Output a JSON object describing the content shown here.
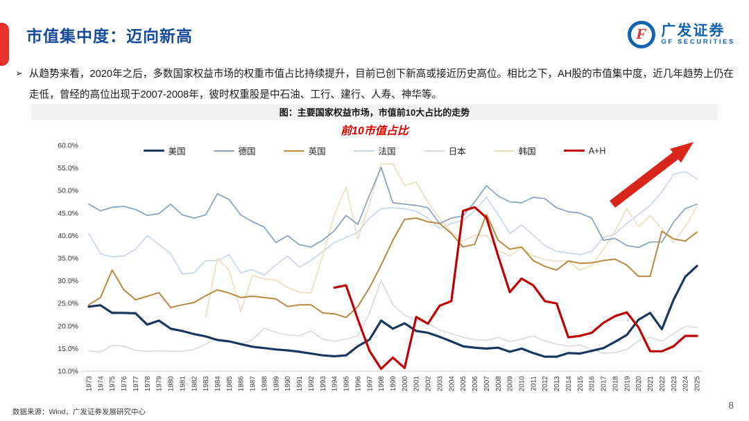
{
  "slide": {
    "title": "市值集中度：迈向新高",
    "bullet_glyph": "➢",
    "bullet": "从趋势来看，2020年之后，多数国家权益市场的权重市值占比持续提升，目前已创下新高或接近历史高位。相比之下，AH股的市值集中度，近几年趋势上仍在走低，曾经的高位出现于2007-2008年，彼时权重股是中石油、工行、建行、人寿、神华等。",
    "source_note": "数据来源：Wind，广发证券发展研究中心",
    "page_number": "8"
  },
  "logo": {
    "cn": "广发证券",
    "en": "GF SECURITIES",
    "glyph": "F",
    "brand_blue": "#1264AE",
    "brand_red": "#E5342B"
  },
  "chart_data": {
    "type": "line",
    "title": "图：主要国家权益市场，市值前10大占比的走势",
    "subtitle": "前10市值占比",
    "xlabel": "",
    "ylabel": "",
    "grid": false,
    "legend_position": "top",
    "ylim": [
      10,
      60
    ],
    "ytick_labels": [
      "60.0%",
      "55.0%",
      "50.0%",
      "45.0%",
      "40.0%",
      "35.0%",
      "30.0%",
      "25.0%",
      "20.0%",
      "15.0%",
      "10.0%"
    ],
    "x": [
      1973,
      1974,
      1975,
      1976,
      1977,
      1978,
      1979,
      1980,
      1981,
      1982,
      1983,
      1984,
      1985,
      1986,
      1987,
      1988,
      1989,
      1990,
      1991,
      1992,
      1993,
      1994,
      1995,
      1996,
      1997,
      1998,
      1999,
      2000,
      2001,
      2002,
      2003,
      2004,
      2005,
      2006,
      2007,
      2008,
      2009,
      2010,
      2011,
      2012,
      2013,
      2014,
      2015,
      2016,
      2017,
      2018,
      2019,
      2020,
      2021,
      2022,
      2023,
      2024,
      2025
    ],
    "series": [
      {
        "name": "美国",
        "key": "us",
        "color": "#17375E",
        "width": 3.2,
        "values": [
          24.3,
          24.6,
          22.9,
          22.9,
          22.8,
          20.3,
          21.2,
          19.4,
          18.9,
          18.2,
          17.7,
          16.9,
          16.6,
          16.0,
          15.4,
          15.1,
          14.8,
          14.6,
          14.3,
          13.9,
          13.5,
          13.3,
          13.5,
          15.5,
          17.0,
          21.2,
          19.4,
          20.6,
          18.9,
          18.5,
          17.6,
          16.6,
          15.5,
          15.2,
          15.0,
          15.2,
          14.3,
          15.0,
          14.0,
          13.2,
          13.2,
          14.0,
          13.9,
          14.5,
          15.1,
          16.5,
          18.0,
          21.4,
          22.9,
          19.3,
          25.8,
          30.9,
          33.3
        ]
      },
      {
        "name": "德国",
        "key": "de",
        "color": "#8CA5C0",
        "width": 1.8,
        "values": [
          47.0,
          45.5,
          46.3,
          46.5,
          45.8,
          44.5,
          44.9,
          47.0,
          44.6,
          43.9,
          44.6,
          49.3,
          48.0,
          44.6,
          43.1,
          41.9,
          38.5,
          40.0,
          38.0,
          37.5,
          39.0,
          41.1,
          44.5,
          42.5,
          49.0,
          55.1,
          47.3,
          47.0,
          46.7,
          46.2,
          42.7,
          43.9,
          44.4,
          47.5,
          51.1,
          48.8,
          47.5,
          47.3,
          48.5,
          48.2,
          46.2,
          45.3,
          45.0,
          43.9,
          39.0,
          39.4,
          37.8,
          37.4,
          38.6,
          38.6,
          43.0,
          46.0,
          47.0
        ]
      },
      {
        "name": "英国",
        "key": "uk",
        "color": "#B8893E",
        "width": 2.0,
        "values": [
          24.7,
          26.3,
          32.4,
          28.0,
          25.8,
          26.6,
          27.4,
          24.1,
          24.7,
          25.2,
          26.7,
          28.0,
          27.3,
          26.3,
          26.6,
          26.3,
          26.0,
          24.3,
          24.7,
          24.7,
          22.9,
          22.7,
          21.9,
          24.3,
          28.5,
          33.5,
          39.0,
          43.6,
          43.9,
          43.1,
          42.7,
          40.5,
          37.5,
          38.1,
          44.7,
          39.0,
          37.0,
          37.5,
          34.5,
          33.2,
          32.4,
          34.4,
          33.9,
          34.0,
          34.5,
          34.8,
          33.5,
          31.0,
          31.0,
          41.0,
          39.3,
          38.8,
          40.8
        ]
      },
      {
        "name": "法国",
        "key": "fr",
        "color": "#C6D5EA",
        "width": 1.6,
        "values": [
          40.5,
          36.0,
          35.3,
          35.5,
          37.0,
          40.0,
          38.0,
          36.0,
          31.5,
          31.8,
          34.5,
          34.5,
          35.8,
          31.8,
          32.5,
          31.3,
          33.5,
          35.5,
          33.0,
          34.5,
          36.5,
          38.5,
          39.6,
          40.8,
          43.9,
          46.0,
          46.2,
          46.0,
          45.4,
          43.9,
          41.6,
          42.7,
          43.4,
          45.5,
          48.5,
          44.7,
          40.5,
          42.4,
          40.1,
          37.8,
          36.5,
          36.2,
          35.8,
          36.5,
          39.6,
          40.4,
          42.7,
          44.7,
          46.7,
          49.7,
          53.6,
          54.2,
          52.6
        ]
      },
      {
        "name": "日本",
        "key": "jp",
        "color": "#D9D9D9",
        "width": 1.6,
        "values": [
          14.5,
          14.2,
          15.7,
          15.5,
          14.6,
          14.4,
          14.5,
          14.4,
          14.4,
          14.8,
          16.0,
          17.1,
          16.5,
          16.0,
          17.0,
          19.5,
          18.6,
          18.0,
          17.8,
          18.9,
          17.1,
          16.6,
          17.1,
          17.8,
          22.9,
          30.1,
          24.7,
          22.4,
          21.2,
          20.6,
          19.1,
          18.3,
          17.5,
          17.0,
          16.8,
          17.5,
          16.5,
          17.1,
          17.8,
          16.7,
          16.0,
          15.5,
          15.8,
          14.8,
          14.0,
          14.1,
          14.8,
          16.7,
          17.5,
          16.6,
          18.3,
          19.9,
          19.7
        ]
      },
      {
        "name": "韩国",
        "key": "kr",
        "color": "#EADDBE",
        "width": 1.6,
        "values": [
          null,
          null,
          null,
          null,
          null,
          null,
          null,
          null,
          null,
          null,
          22.0,
          35.0,
          32.4,
          23.2,
          31.2,
          30.4,
          30.2,
          28.5,
          27.5,
          27.3,
          35.5,
          44.7,
          50.8,
          39.3,
          47.0,
          55.9,
          55.9,
          51.1,
          51.9,
          47.4,
          43.9,
          40.8,
          38.8,
          40.1,
          40.0,
          36.7,
          35.5,
          37.3,
          35.5,
          34.7,
          34.4,
          34.4,
          32.4,
          33.4,
          37.0,
          41.0,
          46.0,
          42.0,
          44.5,
          41.5,
          38.5,
          42.0,
          46.5
        ]
      },
      {
        "name": "A+H",
        "key": "ah",
        "color": "#C00000",
        "width": 3.2,
        "values": [
          null,
          null,
          null,
          null,
          null,
          null,
          null,
          null,
          null,
          null,
          null,
          null,
          null,
          null,
          null,
          null,
          null,
          null,
          null,
          null,
          null,
          28.5,
          29.0,
          21.5,
          14.5,
          10.5,
          13.0,
          10.7,
          22.0,
          20.5,
          24.5,
          25.5,
          45.5,
          46.3,
          44.0,
          35.5,
          27.5,
          30.5,
          29.0,
          25.5,
          25.0,
          17.5,
          17.8,
          18.5,
          20.7,
          22.2,
          23.0,
          19.7,
          14.4,
          14.4,
          15.5,
          17.8,
          17.8
        ]
      }
    ],
    "annotation": {
      "type": "arrow-up-right",
      "color": "#D9261C"
    }
  }
}
